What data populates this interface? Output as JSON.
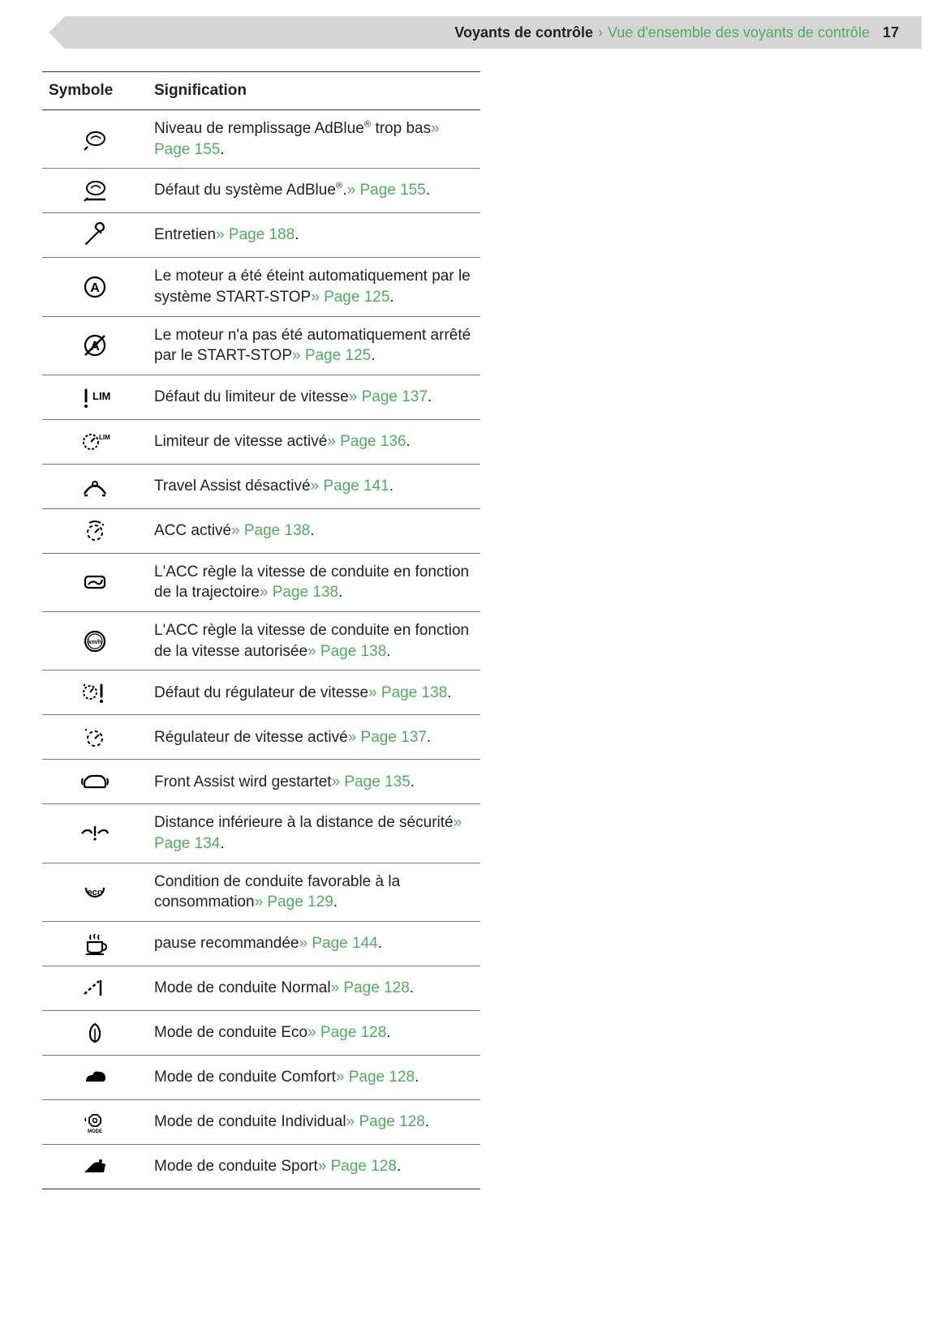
{
  "header": {
    "title": "Voyants de contrôle",
    "sep": "›",
    "subtitle": "Vue d'ensemble des voyants de contrôle",
    "page_number": "17"
  },
  "table": {
    "col1_header": "Symbole",
    "col2_header": "Signification"
  },
  "rows": [
    {
      "icon": "adblue-low-icon",
      "text_before": "Niveau de remplissage AdBlue",
      "sup": "®",
      "text_mid": " trop bas",
      "link": "» Page 155",
      "text_after": "."
    },
    {
      "icon": "adblue-fault-icon",
      "text_before": "Défaut du système AdBlue",
      "sup": "®",
      "text_mid": ".",
      "link": "» Page 155",
      "text_after": "."
    },
    {
      "icon": "wrench-icon",
      "text_before": "Entretien",
      "sup": "",
      "text_mid": "",
      "link": "» Page 188",
      "text_after": "."
    },
    {
      "icon": "start-stop-on-icon",
      "text_before": "Le moteur a été éteint automatiquement par le système START-STOP",
      "sup": "",
      "text_mid": "",
      "link": "» Page 125",
      "text_after": "."
    },
    {
      "icon": "start-stop-off-icon",
      "text_before": "Le moteur n'a pas été automatiquement arrêté par le START-STOP",
      "sup": "",
      "text_mid": "",
      "link": "» Page 125",
      "text_after": "."
    },
    {
      "icon": "speed-limiter-fault-icon",
      "text_before": "Défaut du limiteur de vitesse",
      "sup": "",
      "text_mid": "",
      "link": "» Page 137",
      "text_after": "."
    },
    {
      "icon": "speed-limiter-active-icon",
      "text_before": "Limiteur de vitesse activé",
      "sup": "",
      "text_mid": "",
      "link": "» Page 136",
      "text_after": "."
    },
    {
      "icon": "travel-assist-off-icon",
      "text_before": "Travel Assist désactivé",
      "sup": "",
      "text_mid": "",
      "link": "» Page 141",
      "text_after": "."
    },
    {
      "icon": "acc-active-icon",
      "text_before": "ACC activé",
      "sup": "",
      "text_mid": "",
      "link": "» Page 138",
      "text_after": "."
    },
    {
      "icon": "acc-route-icon",
      "text_before": "L'ACC règle la vitesse de conduite en fonction de la trajectoire",
      "sup": "",
      "text_mid": "",
      "link": "» Page 138",
      "text_after": "."
    },
    {
      "icon": "acc-speed-limit-icon",
      "text_before": "L'ACC règle la vitesse de conduite en fonction de la vitesse autorisée",
      "sup": "",
      "text_mid": "",
      "link": "» Page 138",
      "text_after": "."
    },
    {
      "icon": "cruise-control-fault-icon",
      "text_before": "Défaut du régulateur de vitesse",
      "sup": "",
      "text_mid": "",
      "link": "» Page 138",
      "text_after": "."
    },
    {
      "icon": "cruise-control-active-icon",
      "text_before": "Régulateur de vitesse activé",
      "sup": "",
      "text_mid": "",
      "link": "» Page 137",
      "text_after": "."
    },
    {
      "icon": "front-assist-icon",
      "text_before": "Front Assist wird gestartet",
      "sup": "",
      "text_mid": "",
      "link": "» Page 135",
      "text_after": "."
    },
    {
      "icon": "distance-warning-icon",
      "text_before": "Distance inférieure à la distance de sécurité",
      "sup": "",
      "text_mid": "",
      "link": "» Page 134",
      "text_after": "."
    },
    {
      "icon": "eco-icon",
      "text_before": "Condition de conduite favorable à la consommation",
      "sup": "",
      "text_mid": "",
      "link": "» Page 129",
      "text_after": "."
    },
    {
      "icon": "coffee-icon",
      "text_before": "pause recommandée",
      "sup": "",
      "text_mid": "",
      "link": "» Page 144",
      "text_after": "."
    },
    {
      "icon": "mode-normal-icon",
      "text_before": "Mode de conduite Normal",
      "sup": "",
      "text_mid": "",
      "link": "» Page 128",
      "text_after": "."
    },
    {
      "icon": "mode-eco-icon",
      "text_before": "Mode de conduite Eco",
      "sup": "",
      "text_mid": "",
      "link": "» Page 128",
      "text_after": "."
    },
    {
      "icon": "mode-comfort-icon",
      "text_before": "Mode de conduite Comfort",
      "sup": "",
      "text_mid": "",
      "link": "» Page 128",
      "text_after": "."
    },
    {
      "icon": "mode-individual-icon",
      "text_before": "Mode de conduite Individual",
      "sup": "",
      "text_mid": "",
      "link": "» Page 128",
      "text_after": "."
    },
    {
      "icon": "mode-sport-icon",
      "text_before": "Mode de conduite Sport",
      "sup": "",
      "text_mid": "",
      "link": "» Page 128",
      "text_after": "."
    }
  ],
  "colors": {
    "link": "#4bb05c",
    "text": "#222222",
    "header_bg": "#d5d5d5",
    "border": "#333333"
  }
}
